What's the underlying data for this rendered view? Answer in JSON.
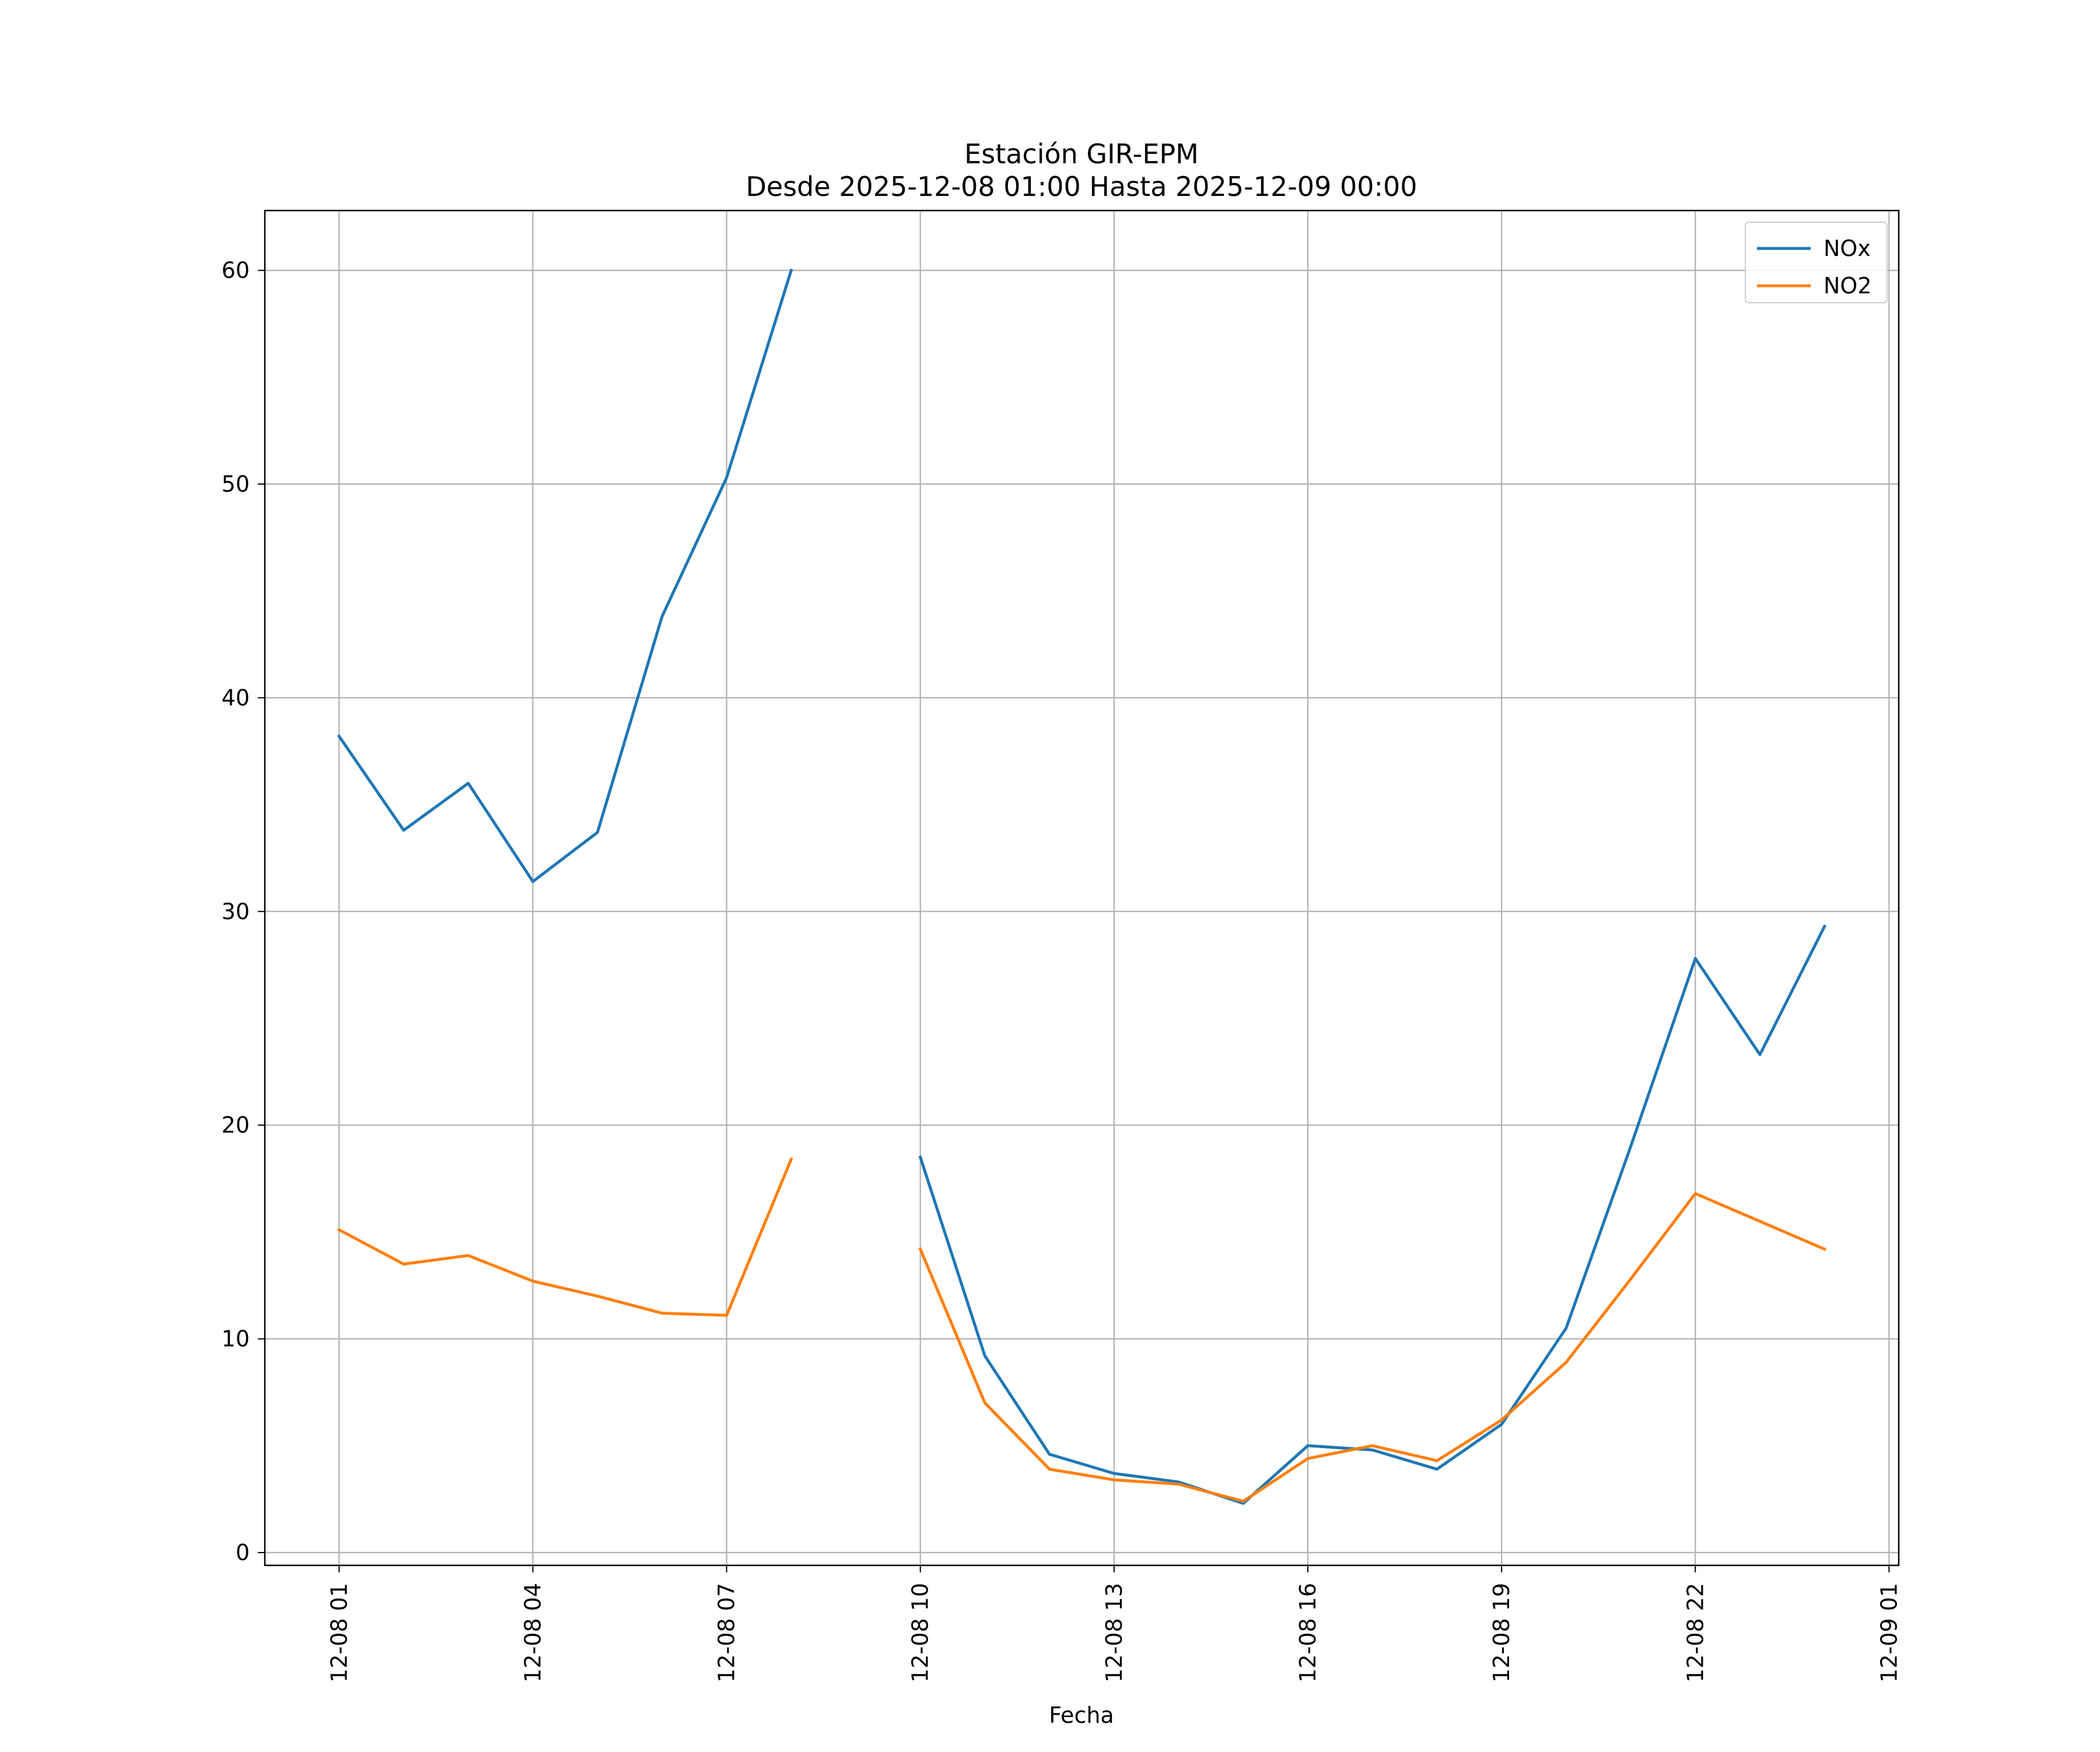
{
  "chart_data": {
    "type": "line",
    "title_lines": [
      "Estación GIR-EPM",
      "Desde 2025-12-08 01:00 Hasta 2025-12-09 00:00"
    ],
    "xlabel": "Fecha",
    "ylabel": "",
    "x": [
      "2025-12-08 01:00",
      "2025-12-08 02:00",
      "2025-12-08 03:00",
      "2025-12-08 04:00",
      "2025-12-08 05:00",
      "2025-12-08 06:00",
      "2025-12-08 07:00",
      "2025-12-08 08:00",
      "2025-12-08 09:00",
      "2025-12-08 10:00",
      "2025-12-08 11:00",
      "2025-12-08 12:00",
      "2025-12-08 13:00",
      "2025-12-08 14:00",
      "2025-12-08 15:00",
      "2025-12-08 16:00",
      "2025-12-08 17:00",
      "2025-12-08 18:00",
      "2025-12-08 19:00",
      "2025-12-08 20:00",
      "2025-12-08 21:00",
      "2025-12-08 22:00",
      "2025-12-08 23:00",
      "2025-12-09 00:00"
    ],
    "series": [
      {
        "name": "NOx",
        "color": "#1f77b4",
        "values": [
          38.2,
          33.8,
          36.0,
          31.4,
          33.7,
          43.8,
          50.3,
          60.0,
          null,
          18.5,
          9.2,
          4.6,
          3.7,
          3.3,
          2.3,
          5.0,
          4.8,
          3.9,
          6.0,
          10.5,
          19.0,
          27.8,
          23.3,
          29.3
        ]
      },
      {
        "name": "NO2",
        "color": "#ff7f0e",
        "values": [
          15.1,
          13.5,
          13.9,
          12.7,
          12.0,
          11.2,
          11.1,
          18.4,
          null,
          14.2,
          7.0,
          3.9,
          3.4,
          3.2,
          2.4,
          4.4,
          5.0,
          4.3,
          6.2,
          8.9,
          12.8,
          16.8,
          15.5,
          14.2
        ]
      }
    ],
    "xticks": [
      "2025-12-08 01:00",
      "2025-12-08 04:00",
      "2025-12-08 07:00",
      "2025-12-08 10:00",
      "2025-12-08 13:00",
      "2025-12-08 16:00",
      "2025-12-08 19:00",
      "2025-12-08 22:00",
      "2025-12-09 01:00"
    ],
    "xtick_labels": [
      "12-08 01",
      "12-08 04",
      "12-08 07",
      "12-08 10",
      "12-08 13",
      "12-08 16",
      "12-08 19",
      "12-08 22",
      "12-09 01"
    ],
    "yticks": [
      0,
      10,
      20,
      30,
      40,
      50,
      60
    ],
    "ytick_labels": [
      "0",
      "10",
      "20",
      "30",
      "40",
      "50",
      "60"
    ],
    "xlim": [
      "2025-12-07 23:51",
      "2025-12-09 01:09"
    ],
    "ylim": [
      -0.6,
      62.8
    ],
    "grid": true,
    "legend_position": "top-right"
  }
}
